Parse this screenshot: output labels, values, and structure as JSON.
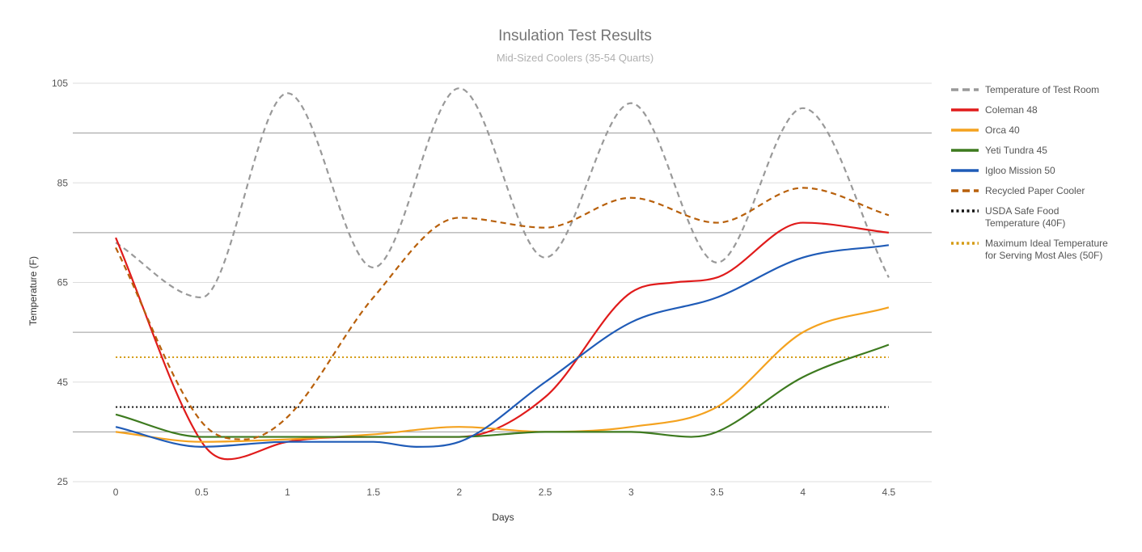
{
  "chart_data": {
    "type": "line",
    "title": "Insulation Test Results",
    "subtitle": "Mid-Sized Coolers (35-54 Quarts)",
    "xlabel": "Days",
    "ylabel": "Temperature (F)",
    "xlim": [
      -0.25,
      4.75
    ],
    "ylim": [
      25,
      105
    ],
    "x_ticks": [
      0,
      0.5,
      1,
      1.5,
      2,
      2.5,
      3,
      3.5,
      4,
      4.5
    ],
    "x_tick_labels": [
      "0",
      "0.5",
      "1",
      "1.5",
      "2",
      "2.5",
      "3",
      "3.5",
      "4",
      "4.5"
    ],
    "y_ticks": [
      25,
      45,
      65,
      85,
      105
    ],
    "y_tick_labels": [
      "25",
      "45",
      "65",
      "85",
      "105"
    ],
    "y_minor_gridlines": [
      35,
      55,
      75,
      95
    ],
    "legend_position": "right",
    "series": [
      {
        "name": "Temperature of Test Room",
        "color": "#999999",
        "style": "dashed",
        "x": [
          0,
          0.5,
          1,
          1.5,
          2,
          2.5,
          3,
          3.5,
          4,
          4.5
        ],
        "y": [
          73,
          62,
          103,
          68,
          104,
          70,
          101,
          69,
          100,
          66
        ]
      },
      {
        "name": "Coleman 48",
        "color": "#e01b1b",
        "style": "solid",
        "x": [
          0,
          0.5,
          0.65,
          1,
          1.5,
          2,
          2.5,
          3,
          3.25,
          3.5,
          4,
          4.5
        ],
        "y": [
          74,
          33,
          29.5,
          33,
          34,
          34,
          42,
          63,
          65,
          66,
          77,
          75
        ]
      },
      {
        "name": "Orca 40",
        "color": "#f4a21f",
        "style": "solid",
        "x": [
          0,
          0.5,
          1,
          1.5,
          2,
          2.5,
          3,
          3.5,
          4,
          4.5
        ],
        "y": [
          35,
          33,
          33.5,
          34.5,
          36,
          35,
          36,
          40,
          55,
          60
        ]
      },
      {
        "name": "Yeti Tundra 45",
        "color": "#3d7a1f",
        "style": "solid",
        "x": [
          0,
          0.5,
          1,
          1.5,
          2,
          2.5,
          3,
          3.35,
          3.5,
          4,
          4.5
        ],
        "y": [
          38.5,
          34,
          34,
          34,
          34,
          35,
          35,
          34,
          35,
          46,
          52.5
        ]
      },
      {
        "name": "Igloo Mission 50",
        "color": "#1f5bb7",
        "style": "solid",
        "x": [
          0,
          0.5,
          1,
          1.5,
          1.75,
          2,
          2.5,
          3,
          3.5,
          4,
          4.5
        ],
        "y": [
          36,
          32,
          33,
          33,
          32,
          33,
          45,
          57,
          62,
          70,
          72.5
        ]
      },
      {
        "name": "Recycled Paper Cooler",
        "color": "#b8600b",
        "style": "dashed",
        "x": [
          0,
          0.5,
          0.75,
          1,
          1.5,
          2,
          2.5,
          3,
          3.5,
          4,
          4.5
        ],
        "y": [
          72,
          37,
          33.5,
          38,
          62,
          78,
          76,
          82,
          77,
          84,
          78.5
        ]
      },
      {
        "name": "USDA Safe Food\nTemperature (40F)",
        "color": "#111111",
        "style": "dotted",
        "x": [
          0,
          4.5
        ],
        "y": [
          40,
          40
        ]
      },
      {
        "name": "Maximum Ideal Temperature\nfor Serving Most Ales (50F)",
        "color": "#d49a11",
        "style": "dotted",
        "x": [
          0,
          4.5
        ],
        "y": [
          50,
          50
        ]
      }
    ]
  }
}
